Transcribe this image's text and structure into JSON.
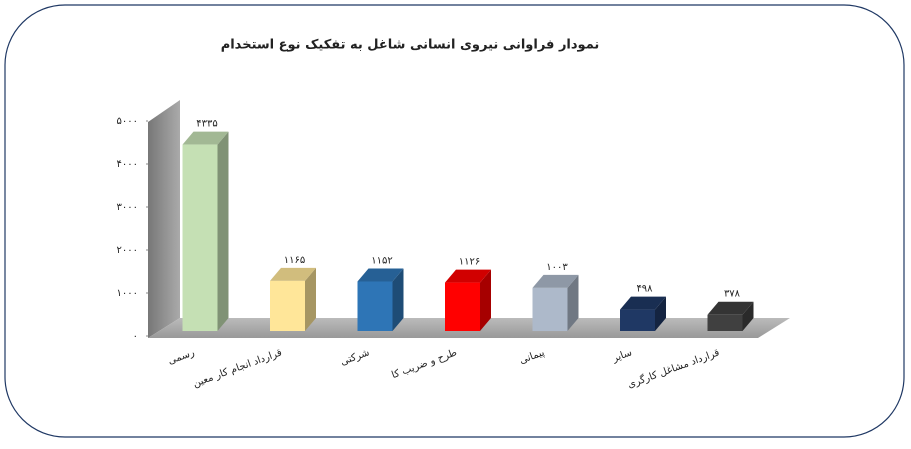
{
  "chart_data": {
    "type": "bar3d",
    "title": "نمودار فراوانی نیروی انسانی شاغل به تفکیک نوع استخدام",
    "categories": [
      "رسمی",
      "قرارداد انجام کار معین",
      "شرکتی",
      "طرح و ضریب کا",
      "پیمانی",
      "سایر",
      "قرارداد مشاغل کارگری"
    ],
    "values": [
      4335,
      1165,
      1152,
      1126,
      1003,
      498,
      378
    ],
    "value_labels": [
      "۴۳۳۵",
      "۱۱۶۵",
      "۱۱۵۲",
      "۱۱۲۶",
      "۱۰۰۳",
      "۴۹۸",
      "۳۷۸"
    ],
    "colors": [
      "#c5e0b4",
      "#ffe699",
      "#2e75b6",
      "#ff0000",
      "#adb9ca",
      "#1f3864",
      "#404040"
    ],
    "ylim": [
      0,
      5000
    ],
    "yticks": [
      {
        "value": 0,
        "label": "۰"
      },
      {
        "value": 1000,
        "label": "۱۰۰۰"
      },
      {
        "value": 2000,
        "label": "۲۰۰۰"
      },
      {
        "value": 3000,
        "label": "۳۰۰۰"
      },
      {
        "value": 4000,
        "label": "۴۰۰۰"
      },
      {
        "value": 5000,
        "label": "۵۰۰۰"
      }
    ]
  }
}
